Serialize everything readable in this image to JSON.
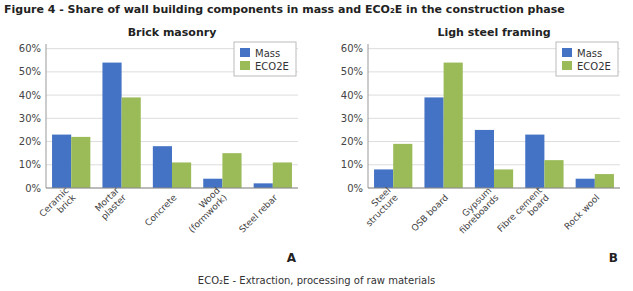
{
  "title": "Figure 4 - Share of wall building components in mass and ECO₂E in the construction phase",
  "footer": "ECO₂E - Extraction, processing of raw materials",
  "chart_data": [
    {
      "type": "bar",
      "title": "Brick masonry",
      "annotations": [
        "A"
      ],
      "categories": [
        "Ceramic\nbrick",
        "Mortar\nplaster",
        "Concrete",
        "Wood\n(formwork)",
        "Steel rebar"
      ],
      "series": [
        {
          "name": "Mass",
          "color": "#4472C4",
          "values": [
            0.23,
            0.54,
            0.18,
            0.04,
            0.02
          ]
        },
        {
          "name": "ECO2E",
          "color": "#9BBB59",
          "values": [
            0.22,
            0.39,
            0.11,
            0.15,
            0.11
          ]
        }
      ],
      "ylim": [
        0,
        0.62
      ],
      "yticks": [
        {
          "value": 0.0,
          "label": "0%"
        },
        {
          "value": 0.1,
          "label": "10%"
        },
        {
          "value": 0.2,
          "label": "20%"
        },
        {
          "value": 0.3,
          "label": "30%"
        },
        {
          "value": 0.4,
          "label": "40%"
        },
        {
          "value": 0.5,
          "label": "50%"
        },
        {
          "value": 0.6,
          "label": "60%"
        }
      ],
      "grid": true,
      "legend": "upper right"
    },
    {
      "type": "bar",
      "title": "Ligh steel framing",
      "annotations": [
        "B"
      ],
      "categories": [
        "Steel\nstructure",
        "OSB board",
        "Gypsum\nfibreboards",
        "Fibre cement\nboard",
        "Rock wool"
      ],
      "series": [
        {
          "name": "Mass",
          "color": "#4472C4",
          "values": [
            0.08,
            0.39,
            0.25,
            0.23,
            0.04
          ]
        },
        {
          "name": "ECO2E",
          "color": "#9BBB59",
          "values": [
            0.19,
            0.54,
            0.08,
            0.12,
            0.06
          ]
        }
      ],
      "ylim": [
        0,
        0.62
      ],
      "yticks": [
        {
          "value": 0.0,
          "label": "0%"
        },
        {
          "value": 0.1,
          "label": "10%"
        },
        {
          "value": 0.2,
          "label": "20%"
        },
        {
          "value": 0.3,
          "label": "30%"
        },
        {
          "value": 0.4,
          "label": "40%"
        },
        {
          "value": 0.5,
          "label": "50%"
        },
        {
          "value": 0.6,
          "label": "60%"
        }
      ],
      "grid": true,
      "legend": "upper right"
    }
  ]
}
